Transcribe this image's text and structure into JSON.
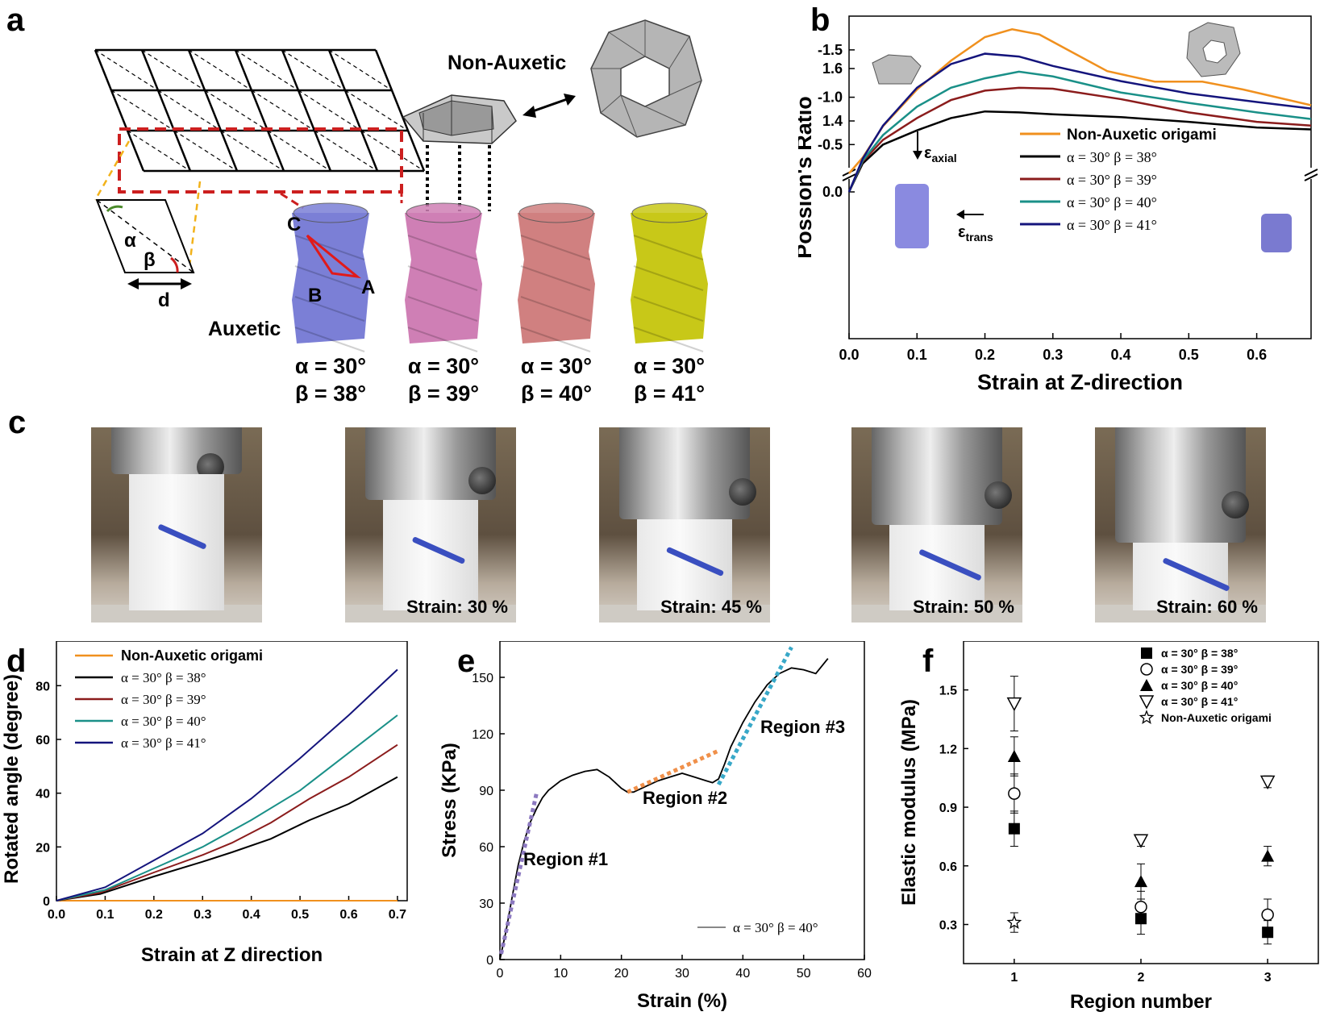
{
  "panel_labels": {
    "a": "a",
    "b": "b",
    "c": "c",
    "d": "d",
    "e": "e",
    "f": "f"
  },
  "panel_a": {
    "non_auxetic_label": "Non-Auxetic",
    "auxetic_label": "Auxetic",
    "angle_labels": {
      "alpha": "α",
      "beta": "β",
      "d": "d"
    },
    "vertex_labels": {
      "A": "A",
      "B": "B",
      "C": "C"
    },
    "tubes": [
      {
        "alpha": "α = 30°",
        "beta": "β = 38°",
        "color": "#7b7fd6"
      },
      {
        "alpha": "α = 30°",
        "beta": "β = 39°",
        "color": "#cf7fb5"
      },
      {
        "alpha": "α = 30°",
        "beta": "β = 40°",
        "color": "#d08080"
      },
      {
        "alpha": "α = 30°",
        "beta": "β = 41°",
        "color": "#c8c818"
      }
    ]
  },
  "panel_c": {
    "captions": [
      "",
      "Strain: 30 %",
      "Strain: 45 %",
      "Strain: 50 %",
      "Strain: 60 %"
    ]
  },
  "chart_data": [
    {
      "panel": "b",
      "type": "line",
      "xlabel": "Strain at Z-direction",
      "ylabel": "Possion's Ratio",
      "xticks": [
        "0.0",
        "0.1",
        "0.2",
        "0.3",
        "0.4",
        "0.5",
        "0.6"
      ],
      "yticks_upper": [
        "1.4",
        "1.6"
      ],
      "yticks_lower": [
        "0.0",
        "-0.5",
        "-1.0",
        "-1.5"
      ],
      "axis_break": true,
      "xlim": [
        0,
        0.68
      ],
      "strain_labels": {
        "axial_sym": "ε",
        "axial_sub": "axial",
        "trans_sym": "ε",
        "trans_sub": "trans"
      },
      "series": [
        {
          "name": "Non-Auxetic origami",
          "color": "#f0901e",
          "x": [
            0.0,
            0.02,
            0.05,
            0.1,
            0.15,
            0.2,
            0.24,
            0.28,
            0.33,
            0.38,
            0.45,
            0.52,
            0.58,
            0.63,
            0.68
          ],
          "y": [
            1.2,
            1.26,
            1.38,
            1.52,
            1.63,
            1.72,
            1.75,
            1.73,
            1.66,
            1.59,
            1.55,
            1.55,
            1.52,
            1.49,
            1.46
          ]
        },
        {
          "name": "α = 30° β = 38°",
          "color": "#000000",
          "x": [
            0.0,
            0.02,
            0.05,
            0.1,
            0.15,
            0.2,
            0.25,
            0.3,
            0.4,
            0.5,
            0.6,
            0.68
          ],
          "y": [
            0.0,
            -0.3,
            -0.5,
            -0.65,
            -0.78,
            -0.85,
            -0.84,
            -0.82,
            -0.79,
            -0.74,
            -0.68,
            -0.66
          ]
        },
        {
          "name": "α = 30° β = 39°",
          "color": "#8b1c1c",
          "x": [
            0.0,
            0.02,
            0.05,
            0.1,
            0.15,
            0.2,
            0.25,
            0.3,
            0.4,
            0.5,
            0.6,
            0.68
          ],
          "y": [
            0.0,
            -0.32,
            -0.55,
            -0.78,
            -0.97,
            -1.07,
            -1.1,
            -1.09,
            -0.98,
            -0.84,
            -0.74,
            -0.7
          ]
        },
        {
          "name": "α = 30° β = 40°",
          "color": "#1a9088",
          "x": [
            0.0,
            0.02,
            0.05,
            0.1,
            0.15,
            0.2,
            0.25,
            0.3,
            0.4,
            0.5,
            0.6,
            0.68
          ],
          "y": [
            0.0,
            -0.33,
            -0.6,
            -0.9,
            -1.1,
            -1.2,
            -1.27,
            -1.22,
            -1.05,
            -0.94,
            -0.84,
            -0.77
          ]
        },
        {
          "name": "α = 30° β = 41°",
          "color": "#14147c",
          "x": [
            0.0,
            0.02,
            0.05,
            0.1,
            0.15,
            0.2,
            0.25,
            0.3,
            0.4,
            0.5,
            0.6,
            0.68
          ],
          "y": [
            0.0,
            -0.35,
            -0.7,
            -1.1,
            -1.35,
            -1.46,
            -1.43,
            -1.33,
            -1.17,
            -1.04,
            -0.95,
            -0.88
          ]
        }
      ]
    },
    {
      "panel": "d",
      "type": "line",
      "xlabel": "Strain at Z direction",
      "ylabel": "Rotated angle (degree)",
      "xlim": [
        0,
        0.72
      ],
      "ylim": [
        0,
        90
      ],
      "xticks": [
        "0.0",
        "0.1",
        "0.2",
        "0.3",
        "0.4",
        "0.5",
        "0.6",
        "0.7"
      ],
      "yticks": [
        "0",
        "20",
        "40",
        "60",
        "80"
      ],
      "series": [
        {
          "name": "Non-Auxetic origami",
          "color": "#f0901e",
          "x": [
            0,
            0.7
          ],
          "y": [
            0,
            0
          ]
        },
        {
          "name": "α = 30° β = 38°",
          "color": "#000000",
          "x": [
            0,
            0.09,
            0.2,
            0.3,
            0.36,
            0.44,
            0.52,
            0.6,
            0.7
          ],
          "y": [
            0,
            2.5,
            9,
            14.5,
            18,
            23,
            30,
            36,
            46
          ]
        },
        {
          "name": "α = 30° β = 39°",
          "color": "#8b1c1c",
          "x": [
            0,
            0.09,
            0.2,
            0.3,
            0.36,
            0.44,
            0.52,
            0.6,
            0.7
          ],
          "y": [
            0,
            3,
            10.5,
            17,
            21.5,
            29,
            38,
            46,
            58
          ]
        },
        {
          "name": "α = 30° β = 40°",
          "color": "#1a9088",
          "x": [
            0,
            0.1,
            0.2,
            0.3,
            0.4,
            0.5,
            0.6,
            0.7
          ],
          "y": [
            0,
            4,
            12,
            20,
            30,
            41,
            55,
            69
          ]
        },
        {
          "name": "α = 30° β = 41°",
          "color": "#14147c",
          "x": [
            0,
            0.1,
            0.2,
            0.3,
            0.4,
            0.5,
            0.6,
            0.7
          ],
          "y": [
            0,
            5,
            15,
            25,
            38,
            53,
            69,
            86
          ]
        }
      ]
    },
    {
      "panel": "e",
      "type": "line",
      "xlabel": "Strain (%)",
      "ylabel": "Stress (KPa)",
      "xlim": [
        0,
        60
      ],
      "ylim": [
        0,
        165
      ],
      "xticks": [
        "0",
        "10",
        "20",
        "30",
        "40",
        "50",
        "60"
      ],
      "yticks": [
        "0",
        "30",
        "60",
        "90",
        "120",
        "150"
      ],
      "annotations": [
        "Region #1",
        "Region #2",
        "Region #3"
      ],
      "series": [
        {
          "name": "α = 30° β = 40°",
          "color": "#000000",
          "x": [
            0,
            1,
            2,
            3,
            4,
            5,
            6,
            7,
            8,
            10,
            12,
            14,
            16,
            18,
            20,
            21,
            22,
            24,
            26,
            28,
            30,
            32,
            34,
            35,
            36,
            37,
            38,
            40,
            42,
            44,
            46,
            48,
            50,
            52,
            54
          ],
          "y": [
            0,
            15,
            33,
            50,
            63,
            73,
            80,
            86,
            90,
            95,
            98,
            100,
            101,
            97,
            91,
            89,
            89,
            92,
            95,
            97,
            99,
            97,
            95,
            94,
            96,
            104,
            113,
            126,
            137,
            146,
            152,
            155,
            154,
            152,
            160
          ]
        }
      ],
      "fit_lines": [
        {
          "color": "#8c79c0",
          "x": [
            0.2,
            6
          ],
          "y": [
            3,
            88
          ]
        },
        {
          "color": "#f0904a",
          "x": [
            21,
            36
          ],
          "y": [
            89,
            111
          ]
        },
        {
          "color": "#38a8c8",
          "x": [
            36,
            48
          ],
          "y": [
            93,
            166
          ]
        }
      ]
    },
    {
      "panel": "f",
      "type": "scatter",
      "xlabel": "Region number",
      "ylabel": "Elastic modulus (MPa)",
      "xlim": [
        0.6,
        3.4
      ],
      "ylim": [
        0.1,
        1.75
      ],
      "xticks": [
        "1",
        "2",
        "3"
      ],
      "yticks": [
        "0.3",
        "0.6",
        "0.9",
        "1.2",
        "1.5"
      ],
      "series": [
        {
          "name": "α = 30° β = 38°",
          "marker": "square-filled",
          "x": [
            1,
            2,
            3
          ],
          "y": [
            0.79,
            0.33,
            0.26
          ],
          "err": [
            0.09,
            0.08,
            0.06
          ]
        },
        {
          "name": "α = 30° β = 39°",
          "marker": "circle-open",
          "x": [
            1,
            2,
            3
          ],
          "y": [
            0.97,
            0.39,
            0.35
          ],
          "err": [
            0.1,
            0.08,
            0.08
          ]
        },
        {
          "name": "α = 30° β = 40°",
          "marker": "triangle-filled",
          "x": [
            1,
            2,
            3
          ],
          "y": [
            1.16,
            0.52,
            0.65
          ],
          "err": [
            0.1,
            0.09,
            0.05
          ]
        },
        {
          "name": "α = 30° β = 41°",
          "marker": "triangle-down-open",
          "x": [
            1,
            2,
            3
          ],
          "y": [
            1.43,
            0.73,
            1.03
          ],
          "err": [
            0.14,
            0.03,
            0.03
          ]
        },
        {
          "name": "Non-Auxetic origami",
          "marker": "star-open",
          "x": [
            1
          ],
          "y": [
            0.31
          ],
          "err": [
            0.05
          ]
        }
      ]
    }
  ]
}
